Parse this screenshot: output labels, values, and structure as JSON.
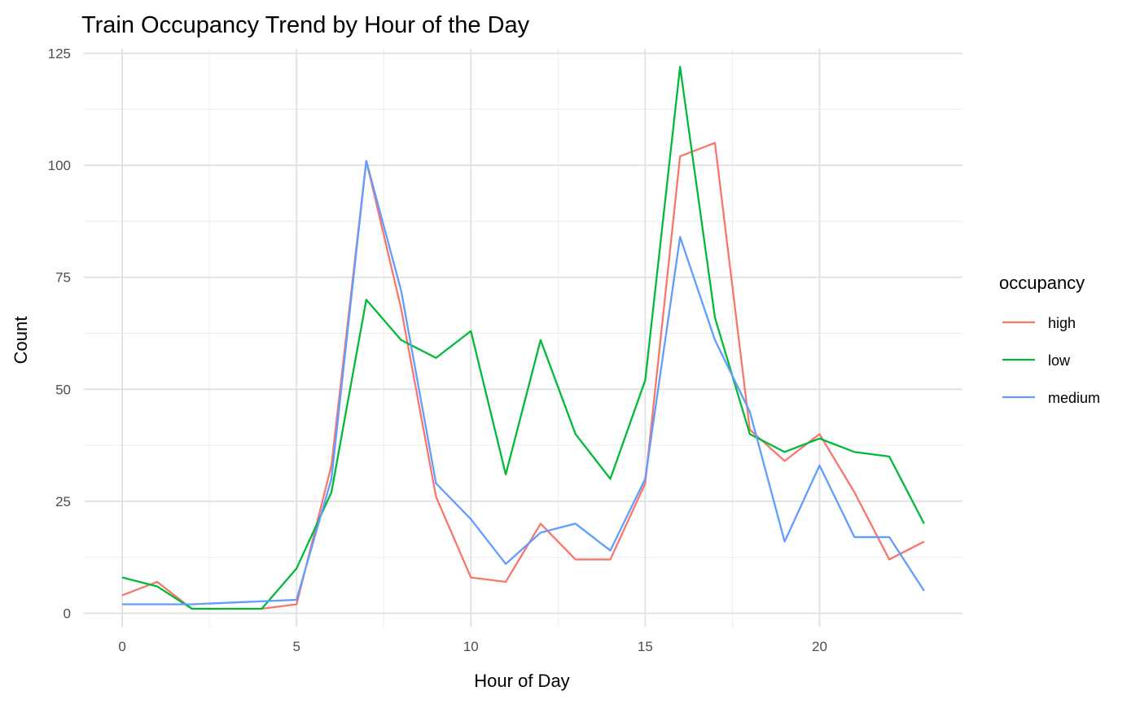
{
  "chart_data": {
    "type": "line",
    "title": "Train Occupancy Trend by Hour of the Day",
    "xlabel": "Hour of Day",
    "ylabel": "Count",
    "xlim": [
      -1.1,
      24.1
    ],
    "ylim": [
      -3,
      126
    ],
    "x_ticks": [
      0,
      5,
      10,
      15,
      20
    ],
    "y_ticks": [
      0,
      25,
      50,
      75,
      100,
      125
    ],
    "grid": true,
    "legend": {
      "title": "occupancy",
      "position": "right"
    },
    "series": [
      {
        "name": "high",
        "color": "#F8766D",
        "points": [
          [
            0,
            4
          ],
          [
            1,
            7
          ],
          [
            2,
            1
          ],
          [
            3,
            1
          ],
          [
            4,
            1
          ],
          [
            5,
            2
          ],
          [
            6,
            33
          ],
          [
            7,
            101
          ],
          [
            8,
            68
          ],
          [
            9,
            26
          ],
          [
            10,
            8
          ],
          [
            11,
            7
          ],
          [
            12,
            20
          ],
          [
            13,
            12
          ],
          [
            14,
            12
          ],
          [
            15,
            29
          ],
          [
            16,
            102
          ],
          [
            17,
            105
          ],
          [
            18,
            41
          ],
          [
            19,
            34
          ],
          [
            20,
            40
          ],
          [
            21,
            27
          ],
          [
            22,
            12
          ],
          [
            23,
            16
          ]
        ]
      },
      {
        "name": "low",
        "color": "#00BA38",
        "points": [
          [
            0,
            8
          ],
          [
            1,
            6
          ],
          [
            2,
            1
          ],
          [
            3,
            1
          ],
          [
            4,
            1
          ],
          [
            5,
            10
          ],
          [
            6,
            27
          ],
          [
            7,
            70
          ],
          [
            8,
            61
          ],
          [
            9,
            57
          ],
          [
            10,
            63
          ],
          [
            11,
            31
          ],
          [
            12,
            61
          ],
          [
            13,
            40
          ],
          [
            14,
            30
          ],
          [
            15,
            52
          ],
          [
            16,
            122
          ],
          [
            17,
            66
          ],
          [
            18,
            40
          ],
          [
            19,
            36
          ],
          [
            20,
            39
          ],
          [
            21,
            36
          ],
          [
            22,
            35
          ],
          [
            23,
            20
          ]
        ]
      },
      {
        "name": "medium",
        "color": "#619CFF",
        "points": [
          [
            0,
            2
          ],
          [
            2,
            2
          ],
          [
            5,
            3
          ],
          [
            6,
            30
          ],
          [
            7,
            101
          ],
          [
            8,
            72
          ],
          [
            9,
            29
          ],
          [
            10,
            21
          ],
          [
            11,
            11
          ],
          [
            12,
            18
          ],
          [
            13,
            20
          ],
          [
            14,
            14
          ],
          [
            15,
            30
          ],
          [
            16,
            84
          ],
          [
            17,
            61
          ],
          [
            18,
            45
          ],
          [
            19,
            16
          ],
          [
            20,
            33
          ],
          [
            21,
            17
          ],
          [
            22,
            17
          ],
          [
            23,
            5
          ]
        ]
      }
    ]
  }
}
